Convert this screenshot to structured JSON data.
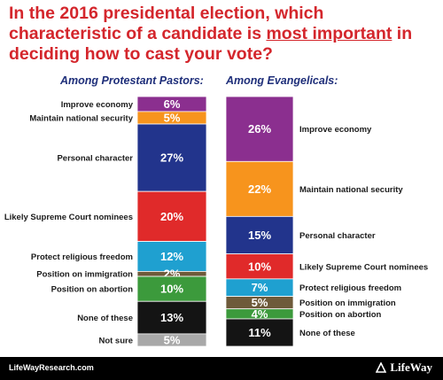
{
  "title": {
    "before": "In the 2016 presidental election, which characteristic of a candidate is ",
    "emphasis": "most important",
    "after": " in deciding how to cast your vote?"
  },
  "footer": {
    "url": "LifeWayResearch.com",
    "logo": "LifeWay"
  },
  "colors": {
    "title": "#d4262c",
    "subtitle": "#1f2f7a",
    "Improve economy": "#8b2f8f",
    "Maintain national security": "#f7941d",
    "Personal character": "#22348c",
    "Likely Supreme Court nominees": "#e02a2a",
    "Protect religious freedom": "#1fa0d0",
    "Position on immigration": "#6e5a3a",
    "Position on abortion": "#3c9a3c",
    "None of these": "#141414",
    "Not sure": "#a8a8a8"
  },
  "chart_data": [
    {
      "type": "bar",
      "subtype": "stacked-100",
      "title": "Among Protestant Pastors:",
      "categories": [
        "Improve economy",
        "Maintain national security",
        "Personal character",
        "Likely Supreme Court nominees",
        "Protect religious freedom",
        "Position on immigration",
        "Position on abortion",
        "None of these",
        "Not sure"
      ],
      "values": [
        6,
        5,
        27,
        20,
        12,
        2,
        10,
        13,
        5
      ],
      "labels": [
        "6%",
        "5%",
        "27%",
        "20%",
        "12%",
        "2%",
        "10%",
        "13%",
        "5%"
      ],
      "label_side": "left"
    },
    {
      "type": "bar",
      "subtype": "stacked-100",
      "title": "Among Evangelicals:",
      "categories": [
        "Improve economy",
        "Maintain national security",
        "Personal character",
        "Likely Supreme Court nominees",
        "Protect religious freedom",
        "Position on immigration",
        "Position on abortion",
        "None of these"
      ],
      "values": [
        26,
        22,
        15,
        10,
        7,
        5,
        4,
        11
      ],
      "labels": [
        "26%",
        "22%",
        "15%",
        "10%",
        "7%",
        "5%",
        "4%",
        "11%"
      ],
      "label_side": "right"
    }
  ]
}
